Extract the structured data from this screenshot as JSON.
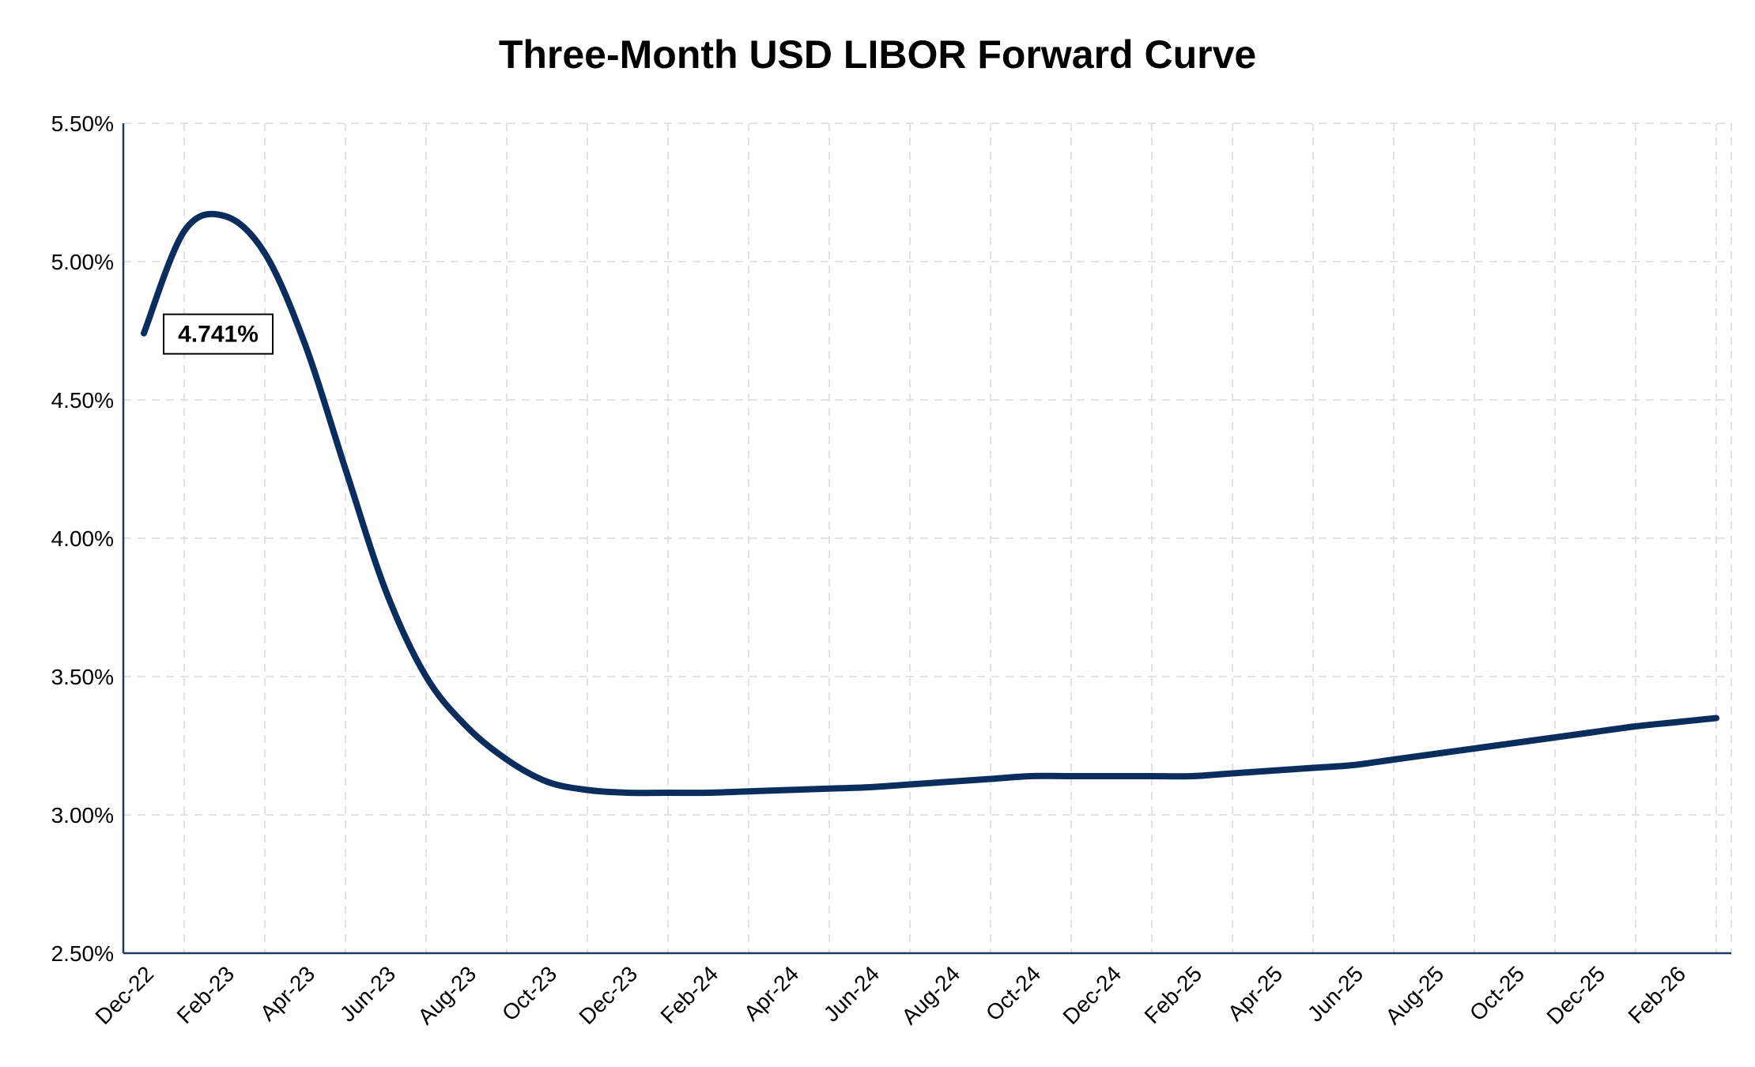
{
  "chart_data": {
    "type": "line",
    "title": "Three-Month USD LIBOR Forward Curve",
    "xlabel": "",
    "ylabel": "",
    "ylim": [
      2.5,
      5.5
    ],
    "y_ticks": [
      "2.50%",
      "3.00%",
      "3.50%",
      "4.00%",
      "4.50%",
      "5.00%",
      "5.50%"
    ],
    "y_tick_values": [
      2.5,
      3.0,
      3.5,
      4.0,
      4.5,
      5.0,
      5.5
    ],
    "x_tick_labels": [
      "Dec-22",
      "Feb-23",
      "Apr-23",
      "Jun-23",
      "Aug-23",
      "Oct-23",
      "Dec-23",
      "Feb-24",
      "Apr-24",
      "Jun-24",
      "Aug-24",
      "Oct-24",
      "Dec-24",
      "Feb-25",
      "Apr-25",
      "Jun-25",
      "Aug-25",
      "Oct-25",
      "Dec-25",
      "Feb-26"
    ],
    "grid": true,
    "legend": "none",
    "line_color": "#0b2d5e",
    "series": [
      {
        "x": [
          "Dec-22",
          "Jan-23",
          "Feb-23",
          "Mar-23",
          "Apr-23",
          "May-23",
          "Jun-23",
          "Jul-23",
          "Aug-23",
          "Sep-23",
          "Oct-23",
          "Nov-23",
          "Dec-23",
          "Jan-24",
          "Feb-24",
          "Mar-24",
          "Apr-24",
          "May-24",
          "Jun-24",
          "Jul-24",
          "Aug-24",
          "Sep-24",
          "Oct-24",
          "Nov-24",
          "Dec-24",
          "Jan-25",
          "Feb-25",
          "Mar-25",
          "Apr-25",
          "May-25",
          "Jun-25",
          "Jul-25",
          "Aug-25",
          "Sep-25",
          "Oct-25",
          "Nov-25",
          "Dec-25",
          "Jan-26",
          "Feb-26",
          "Mar-26"
        ],
        "values": [
          4.741,
          5.11,
          5.165,
          5.03,
          4.7,
          4.25,
          3.81,
          3.5,
          3.32,
          3.2,
          3.12,
          3.09,
          3.08,
          3.08,
          3.08,
          3.085,
          3.09,
          3.095,
          3.1,
          3.11,
          3.12,
          3.13,
          3.14,
          3.14,
          3.14,
          3.14,
          3.14,
          3.15,
          3.16,
          3.17,
          3.18,
          3.2,
          3.22,
          3.24,
          3.26,
          3.28,
          3.3,
          3.32,
          3.335,
          3.35
        ]
      }
    ],
    "annotations": [
      {
        "label": "4.741%",
        "point": "Dec-22"
      }
    ]
  }
}
